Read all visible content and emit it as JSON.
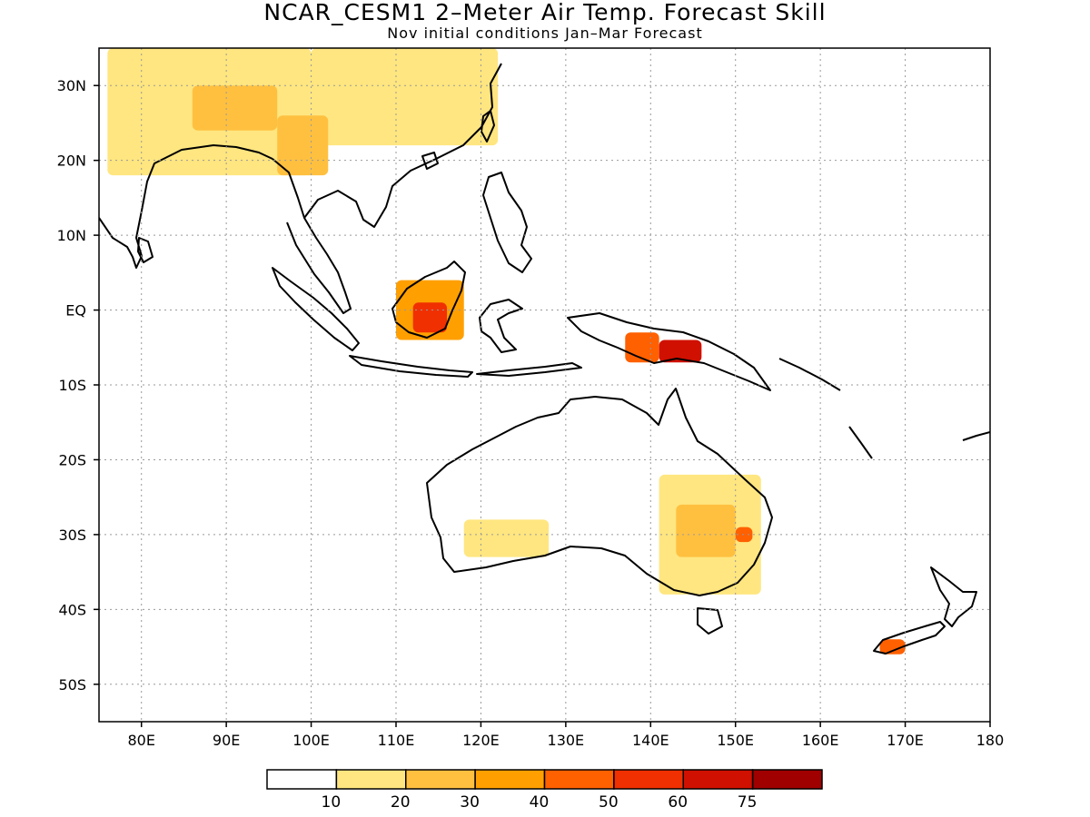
{
  "title": "NCAR_CESM1 2–Meter Air Temp. Forecast Skill",
  "subtitle": "Nov initial conditions  Jan–Mar Forecast",
  "map": {
    "lon_range": [
      75,
      180
    ],
    "lat_range": [
      -55,
      35
    ],
    "grid": "dotted",
    "lon_ticks": [
      "80E",
      "90E",
      "100E",
      "110E",
      "120E",
      "130E",
      "140E",
      "150E",
      "160E",
      "170E",
      "180"
    ],
    "lon_values": [
      80,
      90,
      100,
      110,
      120,
      130,
      140,
      150,
      160,
      170,
      180
    ],
    "lat_ticks": [
      "30N",
      "20N",
      "10N",
      "EQ",
      "10S",
      "20S",
      "30S",
      "40S",
      "50S"
    ],
    "lat_values": [
      30,
      20,
      10,
      0,
      -10,
      -20,
      -30,
      -40,
      -50
    ]
  },
  "colorbar": {
    "labels": [
      "10",
      "20",
      "30",
      "40",
      "50",
      "60",
      "75"
    ],
    "colors": [
      "#ffffff",
      "#ffe680",
      "#ffc040",
      "#ffa000",
      "#ff6000",
      "#f03000",
      "#d01000",
      "#a00000"
    ]
  },
  "chart_data": {
    "type": "heatmap",
    "variable": "2-Meter Air Temp. Forecast Skill",
    "levels": [
      10,
      20,
      30,
      40,
      50,
      60,
      75
    ],
    "xlim": [
      75,
      180
    ],
    "ylim": [
      -55,
      35
    ],
    "regions": [
      {
        "lon": [
          76,
          100
        ],
        "lat": [
          18,
          35
        ],
        "level": 1
      },
      {
        "lon": [
          100,
          122
        ],
        "lat": [
          22,
          35
        ],
        "level": 1
      },
      {
        "lon": [
          86,
          96
        ],
        "lat": [
          24,
          30
        ],
        "level": 2
      },
      {
        "lon": [
          96,
          102
        ],
        "lat": [
          18,
          26
        ],
        "level": 2
      },
      {
        "lon": [
          110,
          118
        ],
        "lat": [
          -4,
          4
        ],
        "level": 3
      },
      {
        "lon": [
          112,
          116
        ],
        "lat": [
          -3,
          1
        ],
        "level": 5
      },
      {
        "lon": [
          141,
          146
        ],
        "lat": [
          -7,
          -4
        ],
        "level": 6
      },
      {
        "lon": [
          137,
          141
        ],
        "lat": [
          -7,
          -3
        ],
        "level": 4
      },
      {
        "lon": [
          141,
          153
        ],
        "lat": [
          -38,
          -22
        ],
        "level": 1
      },
      {
        "lon": [
          143,
          150
        ],
        "lat": [
          -33,
          -26
        ],
        "level": 2
      },
      {
        "lon": [
          150,
          152
        ],
        "lat": [
          -31,
          -29
        ],
        "level": 4
      },
      {
        "lon": [
          118,
          128
        ],
        "lat": [
          -33,
          -28
        ],
        "level": 1
      },
      {
        "lon": [
          167,
          170
        ],
        "lat": [
          -46,
          -44
        ],
        "level": 4
      }
    ]
  }
}
